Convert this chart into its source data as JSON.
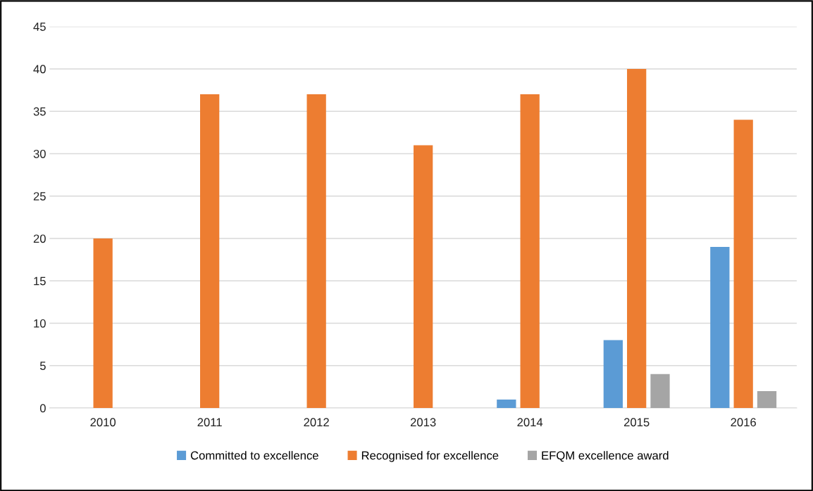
{
  "chart_data": {
    "type": "bar",
    "categories": [
      "2010",
      "2011",
      "2012",
      "2013",
      "2014",
      "2015",
      "2016"
    ],
    "series": [
      {
        "name": "Committed to excellence",
        "color": "#5b9bd5",
        "values": [
          null,
          null,
          null,
          null,
          1,
          8,
          19
        ]
      },
      {
        "name": "Recognised for excellence",
        "color": "#ed7d31",
        "values": [
          20,
          37,
          37,
          31,
          37,
          40,
          34
        ]
      },
      {
        "name": "EFQM excellence award",
        "color": "#a5a5a5",
        "values": [
          null,
          null,
          null,
          null,
          null,
          4,
          2
        ]
      }
    ],
    "ylim": [
      0,
      45
    ],
    "yticks": [
      0,
      5,
      10,
      15,
      20,
      25,
      30,
      35,
      40,
      45
    ],
    "grid": "y",
    "legend": "bottom"
  }
}
